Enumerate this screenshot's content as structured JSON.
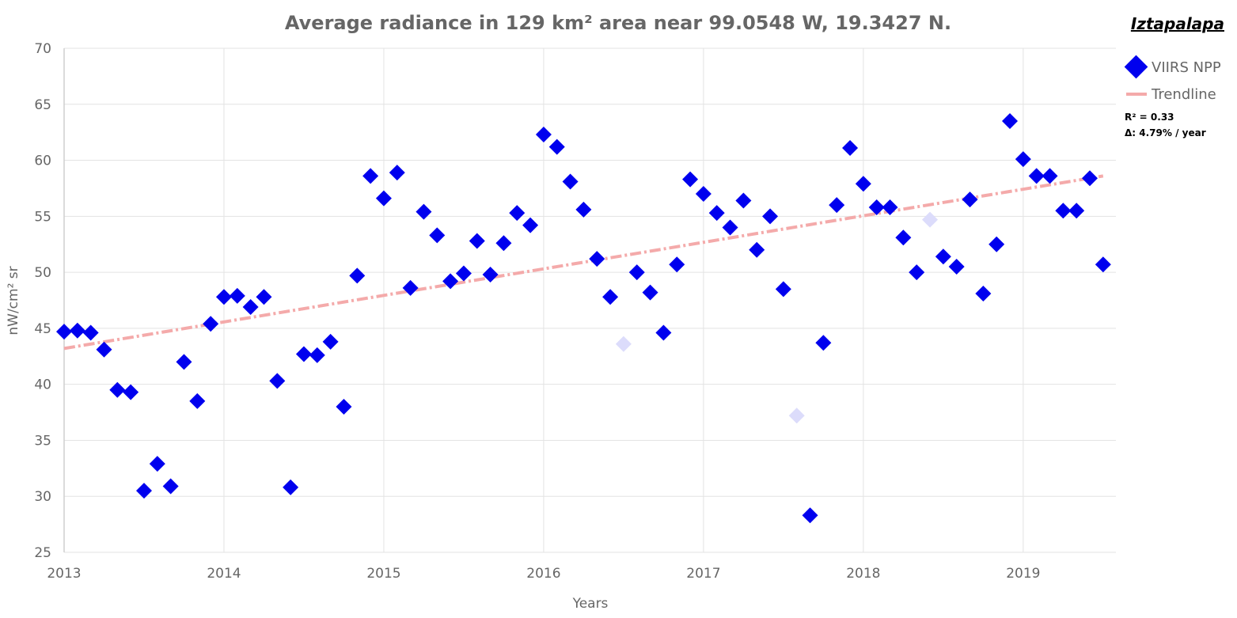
{
  "chart_data": {
    "type": "scatter",
    "title": "Average radiance in 129 km² area near 99.0548 W, 19.3427 N.",
    "place_name": "Iztapalapa",
    "xlabel": "Years",
    "ylabel": "nW/cm² sr",
    "xlim": [
      2013.0,
      2019.58
    ],
    "ylim": [
      25,
      70
    ],
    "x_ticks": [
      2013,
      2014,
      2015,
      2016,
      2017,
      2018,
      2019
    ],
    "y_ticks": [
      25,
      30,
      35,
      40,
      45,
      50,
      55,
      60,
      65,
      70
    ],
    "grid": true,
    "legend_position": "top-right",
    "colors": {
      "points": "#0000ee",
      "faded_points": "#dcdcfb",
      "trend": "#f4aaaa",
      "grid": "#e3e3e3",
      "text": "#666666"
    },
    "series": [
      {
        "name": "VIIRS NPP",
        "marker": "diamond",
        "points": [
          {
            "x": "2013-01",
            "y": 44.7
          },
          {
            "x": "2013-02",
            "y": 44.8
          },
          {
            "x": "2013-03",
            "y": 44.6
          },
          {
            "x": "2013-04",
            "y": 43.1
          },
          {
            "x": "2013-05",
            "y": 39.5
          },
          {
            "x": "2013-06",
            "y": 39.3
          },
          {
            "x": "2013-07",
            "y": 30.5
          },
          {
            "x": "2013-08",
            "y": 32.9
          },
          {
            "x": "2013-09",
            "y": 30.9
          },
          {
            "x": "2013-10",
            "y": 42.0
          },
          {
            "x": "2013-11",
            "y": 38.5
          },
          {
            "x": "2013-12",
            "y": 45.4
          },
          {
            "x": "2014-01",
            "y": 47.8
          },
          {
            "x": "2014-02",
            "y": 47.9
          },
          {
            "x": "2014-03",
            "y": 46.9
          },
          {
            "x": "2014-04",
            "y": 47.8
          },
          {
            "x": "2014-05",
            "y": 40.3
          },
          {
            "x": "2014-06",
            "y": 30.8
          },
          {
            "x": "2014-07",
            "y": 42.7
          },
          {
            "x": "2014-08",
            "y": 42.6
          },
          {
            "x": "2014-09",
            "y": 43.8
          },
          {
            "x": "2014-10",
            "y": 38.0
          },
          {
            "x": "2014-11",
            "y": 49.7
          },
          {
            "x": "2014-12",
            "y": 58.6
          },
          {
            "x": "2015-01",
            "y": 56.6
          },
          {
            "x": "2015-02",
            "y": 58.9
          },
          {
            "x": "2015-03",
            "y": 48.6
          },
          {
            "x": "2015-04",
            "y": 55.4
          },
          {
            "x": "2015-05",
            "y": 53.3
          },
          {
            "x": "2015-06",
            "y": 49.2
          },
          {
            "x": "2015-07",
            "y": 49.9
          },
          {
            "x": "2015-08",
            "y": 52.8
          },
          {
            "x": "2015-09",
            "y": 49.8
          },
          {
            "x": "2015-10",
            "y": 52.6
          },
          {
            "x": "2015-11",
            "y": 55.3
          },
          {
            "x": "2015-12",
            "y": 54.2
          },
          {
            "x": "2016-01",
            "y": 62.3
          },
          {
            "x": "2016-02",
            "y": 61.2
          },
          {
            "x": "2016-03",
            "y": 58.1
          },
          {
            "x": "2016-04",
            "y": 55.6
          },
          {
            "x": "2016-05",
            "y": 51.2
          },
          {
            "x": "2016-06",
            "y": 47.8
          },
          {
            "x": "2016-07",
            "y": 43.6,
            "faded": true
          },
          {
            "x": "2016-08",
            "y": 50.0
          },
          {
            "x": "2016-09",
            "y": 48.2
          },
          {
            "x": "2016-10",
            "y": 44.6
          },
          {
            "x": "2016-11",
            "y": 50.7
          },
          {
            "x": "2016-12",
            "y": 58.3
          },
          {
            "x": "2017-01",
            "y": 57.0
          },
          {
            "x": "2017-02",
            "y": 55.3
          },
          {
            "x": "2017-03",
            "y": 54.0
          },
          {
            "x": "2017-04",
            "y": 56.4
          },
          {
            "x": "2017-05",
            "y": 52.0
          },
          {
            "x": "2017-06",
            "y": 55.0
          },
          {
            "x": "2017-07",
            "y": 48.5
          },
          {
            "x": "2017-08",
            "y": 37.2,
            "faded": true
          },
          {
            "x": "2017-09",
            "y": 28.3
          },
          {
            "x": "2017-10",
            "y": 43.7
          },
          {
            "x": "2017-11",
            "y": 56.0
          },
          {
            "x": "2017-12",
            "y": 61.1
          },
          {
            "x": "2018-01",
            "y": 57.9
          },
          {
            "x": "2018-02",
            "y": 55.8
          },
          {
            "x": "2018-03",
            "y": 55.8
          },
          {
            "x": "2018-04",
            "y": 53.1
          },
          {
            "x": "2018-05",
            "y": 50.0
          },
          {
            "x": "2018-06",
            "y": 54.7,
            "faded": true
          },
          {
            "x": "2018-07",
            "y": 51.4
          },
          {
            "x": "2018-08",
            "y": 50.5
          },
          {
            "x": "2018-09",
            "y": 56.5
          },
          {
            "x": "2018-10",
            "y": 48.1
          },
          {
            "x": "2018-11",
            "y": 52.5
          },
          {
            "x": "2018-12",
            "y": 63.5
          },
          {
            "x": "2019-01",
            "y": 60.1
          },
          {
            "x": "2019-02",
            "y": 58.6
          },
          {
            "x": "2019-03",
            "y": 58.6
          },
          {
            "x": "2019-04",
            "y": 55.5
          },
          {
            "x": "2019-05",
            "y": 55.5
          },
          {
            "x": "2019-06",
            "y": 58.4
          },
          {
            "x": "2019-07",
            "y": 50.7
          }
        ]
      },
      {
        "name": "Trendline",
        "style": "dash-dot",
        "points": [
          {
            "x": "2013-01",
            "y": 43.2
          },
          {
            "x": "2019-07",
            "y": 58.6
          }
        ]
      }
    ],
    "annotations": [
      "R² = 0.33",
      "Δ: 4.79% / year"
    ]
  }
}
